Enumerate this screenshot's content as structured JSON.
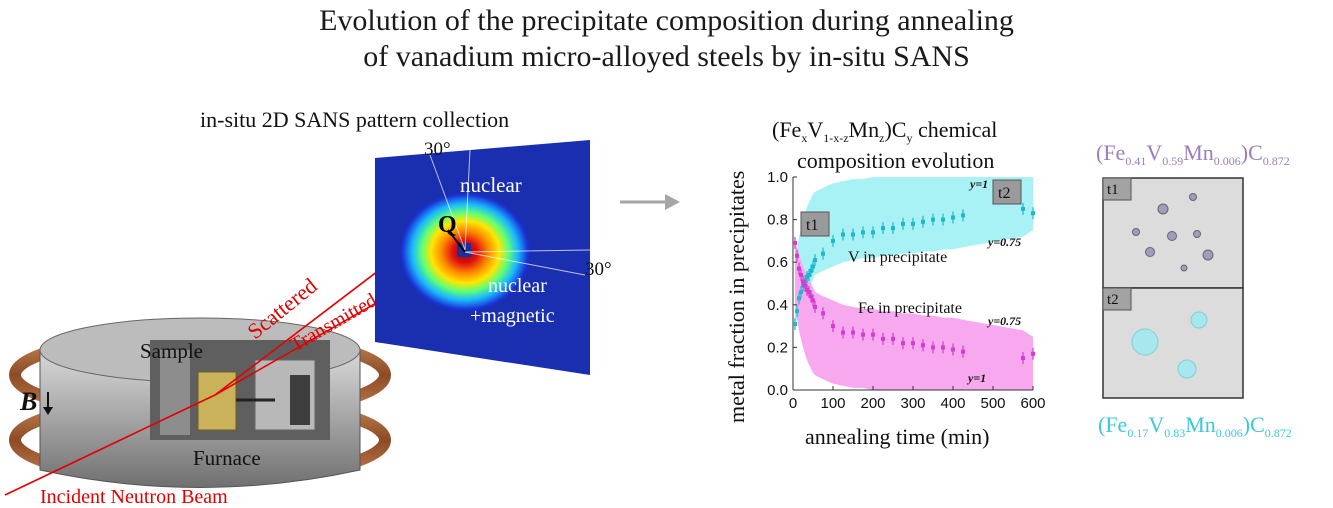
{
  "header": {
    "title_line1": "Evolution of the precipitate composition during annealing",
    "title_line2": "of vanadium micro-alloyed steels by in-situ SANS"
  },
  "setup": {
    "caption": "in-situ 2D SANS pattern collection",
    "sample_label": "Sample",
    "furnace_label": "Furnace",
    "field_label": "B",
    "beam_incident": "Incident Neutron Beam",
    "beam_scattered": "Scattered",
    "beam_transmitted": "Transmitted",
    "detector_q": "Q",
    "detector_nuclear": "nuclear",
    "detector_nuclear_magnetic_1": "nuclear",
    "detector_nuclear_magnetic_2": "+magnetic",
    "angle_top": "30°",
    "angle_right": "30°",
    "arrow_color": "#a6a6a6"
  },
  "chart_data": {
    "type": "scatter",
    "title_line1_parts": [
      "(Fe",
      "x",
      "V",
      "1-x-z",
      "Mn",
      "z",
      ")C",
      "y",
      " chemical"
    ],
    "title_line2": "composition evolution",
    "xlabel": "annealing time (min)",
    "ylabel": "metal fraction in precipitates",
    "xlim": [
      0,
      600
    ],
    "ylim": [
      0.0,
      1.0
    ],
    "xticks": [
      "0",
      "100",
      "200",
      "300",
      "400",
      "500",
      "600"
    ],
    "yticks": [
      "0.0",
      "0.2",
      "0.4",
      "0.6",
      "0.8",
      "1.0"
    ],
    "series": [
      {
        "name": "V in precipitate",
        "color": "#1fb8c8",
        "band_color": "#a8f2f6",
        "x": [
          5,
          10,
          15,
          20,
          25,
          30,
          35,
          40,
          45,
          50,
          55,
          75,
          100,
          125,
          150,
          175,
          200,
          225,
          250,
          275,
          300,
          325,
          350,
          375,
          400,
          425,
          575,
          600
        ],
        "y": [
          0.31,
          0.37,
          0.43,
          0.46,
          0.49,
          0.51,
          0.53,
          0.54,
          0.56,
          0.58,
          0.61,
          0.64,
          0.7,
          0.73,
          0.73,
          0.74,
          0.74,
          0.76,
          0.76,
          0.78,
          0.78,
          0.79,
          0.8,
          0.8,
          0.81,
          0.82,
          0.85,
          0.83
        ],
        "band_upper": [
          0.6,
          0.66,
          0.72,
          0.76,
          0.8,
          0.83,
          0.86,
          0.88,
          0.9,
          0.92,
          0.93,
          0.95,
          0.97,
          0.98,
          0.99,
          0.99,
          1.0,
          1.0,
          1.0,
          1.0,
          1.0,
          1.0,
          1.0,
          1.0,
          1.0,
          1.0,
          1.0,
          1.0
        ],
        "band_lower": [
          0.3,
          0.33,
          0.36,
          0.39,
          0.42,
          0.44,
          0.46,
          0.48,
          0.5,
          0.52,
          0.54,
          0.56,
          0.58,
          0.6,
          0.61,
          0.62,
          0.62,
          0.63,
          0.63,
          0.64,
          0.64,
          0.65,
          0.65,
          0.66,
          0.66,
          0.67,
          0.72,
          0.75
        ]
      },
      {
        "name": "Fe in precipitate",
        "color": "#d13cd1",
        "band_color": "#f7a8ef",
        "x": [
          5,
          10,
          15,
          20,
          25,
          30,
          35,
          40,
          45,
          50,
          55,
          75,
          100,
          125,
          150,
          175,
          200,
          225,
          250,
          275,
          300,
          325,
          350,
          375,
          400,
          425,
          575,
          600
        ],
        "y": [
          0.69,
          0.63,
          0.57,
          0.54,
          0.51,
          0.49,
          0.47,
          0.46,
          0.44,
          0.42,
          0.39,
          0.36,
          0.3,
          0.27,
          0.27,
          0.26,
          0.26,
          0.24,
          0.24,
          0.22,
          0.22,
          0.21,
          0.2,
          0.2,
          0.19,
          0.18,
          0.15,
          0.17
        ]
      }
    ],
    "band_lower_fe": [
      0.4,
      0.34,
      0.28,
      0.24,
      0.2,
      0.17,
      0.14,
      0.12,
      0.1,
      0.08,
      0.07,
      0.05,
      0.03,
      0.02,
      0.01,
      0.01,
      0.0,
      0.0,
      0.0,
      0.0,
      0.0,
      0.0,
      0.0,
      0.0,
      0.0,
      0.0,
      0.0,
      0.0
    ],
    "band_upper_fe": [
      0.7,
      0.67,
      0.64,
      0.61,
      0.58,
      0.56,
      0.54,
      0.52,
      0.5,
      0.48,
      0.46,
      0.44,
      0.42,
      0.4,
      0.39,
      0.38,
      0.38,
      0.37,
      0.37,
      0.36,
      0.36,
      0.35,
      0.35,
      0.34,
      0.34,
      0.33,
      0.28,
      0.25
    ],
    "annotations": {
      "v_label": "V in precipitate",
      "fe_label": "Fe in precipitate",
      "v_y1": "y=1",
      "v_y075": "y=0.75",
      "fe_y075": "y=0.75",
      "fe_y1": "y=1",
      "t1": "t1",
      "t2": "t2"
    }
  },
  "schematic": {
    "top_formula": [
      "(Fe",
      "0.41",
      "V",
      "0.59",
      "Mn",
      "0.006",
      ")C",
      "0.872"
    ],
    "bottom_formula": [
      "(Fe",
      "0.17",
      "V",
      "0.83",
      "Mn",
      "0.006",
      ")C",
      "0.872"
    ],
    "top_color": "#9b7fb8",
    "bottom_color": "#3cc9d6",
    "panel_t1": "t1",
    "panel_t2": "t2",
    "small_particle_color": "#a49ac0",
    "large_particle_color": "#a6e8ee"
  }
}
